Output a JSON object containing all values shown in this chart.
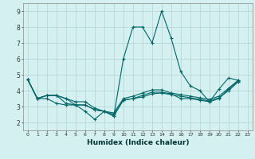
{
  "xlabel": "Humidex (Indice chaleur)",
  "ylabel": "",
  "background_color": "#d4f0f0",
  "grid_color": "#b8d8d8",
  "line_color": "#006666",
  "xlim": [
    -0.5,
    23.5
  ],
  "ylim": [
    1.5,
    9.5
  ],
  "xticks": [
    0,
    1,
    2,
    3,
    4,
    5,
    6,
    7,
    8,
    9,
    10,
    11,
    12,
    13,
    14,
    15,
    16,
    17,
    18,
    19,
    20,
    21,
    22,
    23
  ],
  "yticks": [
    2,
    3,
    4,
    5,
    6,
    7,
    8,
    9
  ],
  "series": [
    [
      4.7,
      3.5,
      3.5,
      3.2,
      3.1,
      3.1,
      2.7,
      2.2,
      2.7,
      2.4,
      6.0,
      8.0,
      8.0,
      7.0,
      9.0,
      7.3,
      5.2,
      4.3,
      4.0,
      3.3,
      4.1,
      4.8,
      4.65
    ],
    [
      4.7,
      3.5,
      3.7,
      3.7,
      3.2,
      3.1,
      3.1,
      2.8,
      2.7,
      2.5,
      3.4,
      3.5,
      3.6,
      3.8,
      3.85,
      3.75,
      3.65,
      3.55,
      3.45,
      3.35,
      3.55,
      4.0,
      4.55
    ],
    [
      4.7,
      3.5,
      3.7,
      3.7,
      3.5,
      3.3,
      3.3,
      2.9,
      2.7,
      2.6,
      3.5,
      3.65,
      3.85,
      4.05,
      4.05,
      3.85,
      3.75,
      3.65,
      3.55,
      3.45,
      3.65,
      4.15,
      4.65
    ],
    [
      4.7,
      3.5,
      3.7,
      3.7,
      3.5,
      3.1,
      3.1,
      2.8,
      2.7,
      2.4,
      3.4,
      3.5,
      3.7,
      3.9,
      3.9,
      3.8,
      3.5,
      3.5,
      3.4,
      3.3,
      3.5,
      4.1,
      4.6
    ]
  ]
}
